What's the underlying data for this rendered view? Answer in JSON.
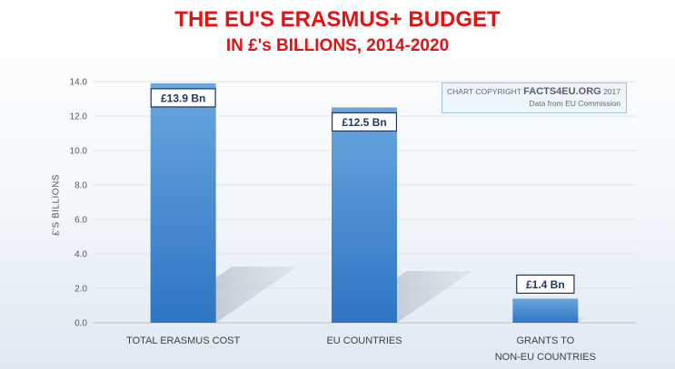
{
  "chart_data": {
    "type": "bar",
    "title": "THE EU'S ERASMUS+ BUDGET",
    "subtitle": "IN £'s BILLIONS, 2014-2020",
    "ylabel": "£'S BILLIONS",
    "xlabel": "",
    "ylim": [
      0,
      14
    ],
    "yticks": [
      0,
      2,
      4,
      6,
      8,
      10,
      12,
      14
    ],
    "ytick_labels": [
      "0.0",
      "2.0",
      "4.0",
      "6.0",
      "8.0",
      "10.0",
      "12.0",
      "14.0"
    ],
    "categories": [
      [
        "TOTAL ERASMUS COST"
      ],
      [
        "EU COUNTRIES"
      ],
      [
        "GRANTS TO",
        "NON-EU COUNTRIES"
      ]
    ],
    "values": [
      13.9,
      12.5,
      1.4
    ],
    "data_labels": [
      "£13.9 Bn",
      "£12.5 Bn",
      "£1.4 Bn"
    ],
    "grid": true,
    "colors": {
      "bar_top": "#6aa6de",
      "bar_bottom": "#2e75c4",
      "label_border": "#1f3864",
      "title": "#e31313"
    }
  },
  "copyright": {
    "prefix": "CHART COPYRIGHT",
    "brand": "FACTS4EU.ORG",
    "year": "2017",
    "source": "Data from EU Commission"
  }
}
